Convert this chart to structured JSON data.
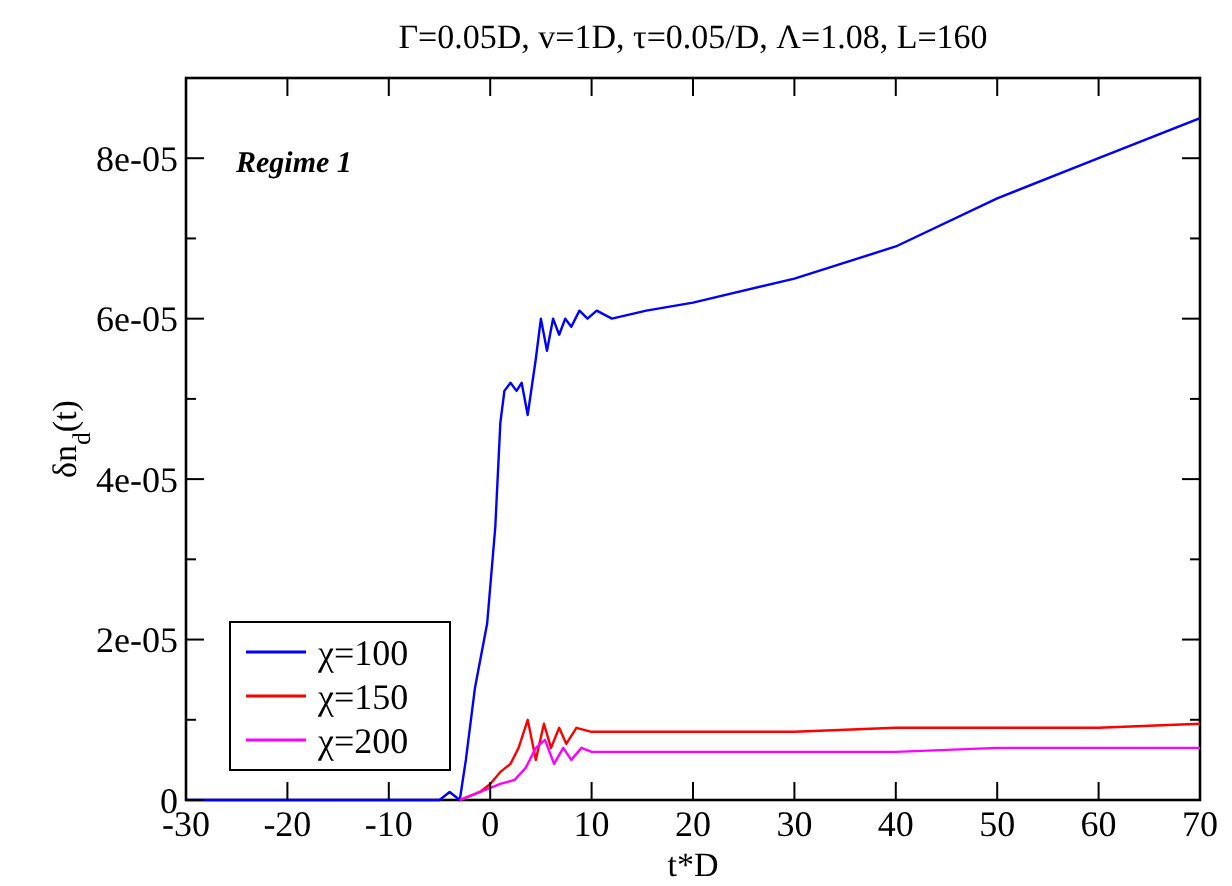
{
  "chart_data": {
    "type": "line",
    "title": "Γ=0.05D, v=1D, τ=0.05/D, Λ=1.08, L=160",
    "xlabel": "t*D",
    "ylabel": "δn$_{d}$(t)",
    "annotations": [
      "Regime 1"
    ],
    "xlim": [
      -30,
      70
    ],
    "xticks": [
      -30,
      -20,
      -10,
      0,
      10,
      20,
      30,
      40,
      50,
      60,
      70
    ],
    "ylim": [
      0,
      9e-05
    ],
    "yticks": [
      {
        "value": 0,
        "label": "0"
      },
      {
        "value": 1e-05,
        "label": null
      },
      {
        "value": 2e-05,
        "label": "2e-05"
      },
      {
        "value": 3e-05,
        "label": null
      },
      {
        "value": 4e-05,
        "label": "4e-05"
      },
      {
        "value": 5e-05,
        "label": null
      },
      {
        "value": 6e-05,
        "label": "6e-05"
      },
      {
        "value": 7e-05,
        "label": null
      },
      {
        "value": 8e-05,
        "label": "8e-05"
      }
    ],
    "legend": "bottom left",
    "grid": false,
    "marker": "none",
    "line_style": "solid",
    "series": [
      {
        "name": "χ=100",
        "color": "#0000ff",
        "x": [
          -30,
          -10,
          -5,
          -4,
          -3,
          -2.4,
          -1.5,
          -0.3,
          0.5,
          1,
          1.4,
          2,
          2.6,
          3.1,
          3.7,
          4.5,
          5,
          5.6,
          6.2,
          6.8,
          7.4,
          8,
          8.8,
          9.6,
          10.5,
          12,
          15.4,
          20,
          30,
          40,
          50,
          60,
          70
        ],
        "values": [
          0,
          0,
          0,
          1e-06,
          0,
          5e-06,
          1.4e-05,
          2.2e-05,
          3.4e-05,
          4.7e-05,
          5.1e-05,
          5.2e-05,
          5.1e-05,
          5.2e-05,
          4.8e-05,
          5.5e-05,
          6e-05,
          5.6e-05,
          6e-05,
          5.8e-05,
          6e-05,
          5.9e-05,
          6.1e-05,
          6e-05,
          6.1e-05,
          6e-05,
          6.1e-05,
          6.2e-05,
          6.5e-05,
          6.9e-05,
          7.5e-05,
          8e-05,
          8.5e-05
        ]
      },
      {
        "name": "χ=150",
        "color": "#ff0000",
        "x": [
          -3,
          -1,
          0,
          1,
          2,
          2.8,
          3.7,
          4.5,
          5.3,
          6,
          6.8,
          7.5,
          8.5,
          10,
          20,
          30,
          40,
          50,
          60,
          70
        ],
        "values": [
          0,
          1e-06,
          2e-06,
          3.5e-06,
          4.5e-06,
          6.5e-06,
          1e-05,
          5e-06,
          9.5e-06,
          6.5e-06,
          9e-06,
          7e-06,
          9e-06,
          8.5e-06,
          8.5e-06,
          8.5e-06,
          9e-06,
          9e-06,
          9e-06,
          9.5e-06
        ]
      },
      {
        "name": "χ=200",
        "color": "#ff00ff",
        "x": [
          -3,
          -1,
          0,
          1,
          2.4,
          3.5,
          4.5,
          5.4,
          6.3,
          7.2,
          8,
          9,
          10,
          20,
          30,
          40,
          50,
          60,
          70
        ],
        "values": [
          0,
          1e-06,
          1.5e-06,
          2e-06,
          2.5e-06,
          4e-06,
          6.5e-06,
          7.5e-06,
          4.5e-06,
          6.5e-06,
          5e-06,
          6.5e-06,
          6e-06,
          6e-06,
          6e-06,
          6e-06,
          6.5e-06,
          6.5e-06,
          6.5e-06
        ]
      }
    ]
  }
}
